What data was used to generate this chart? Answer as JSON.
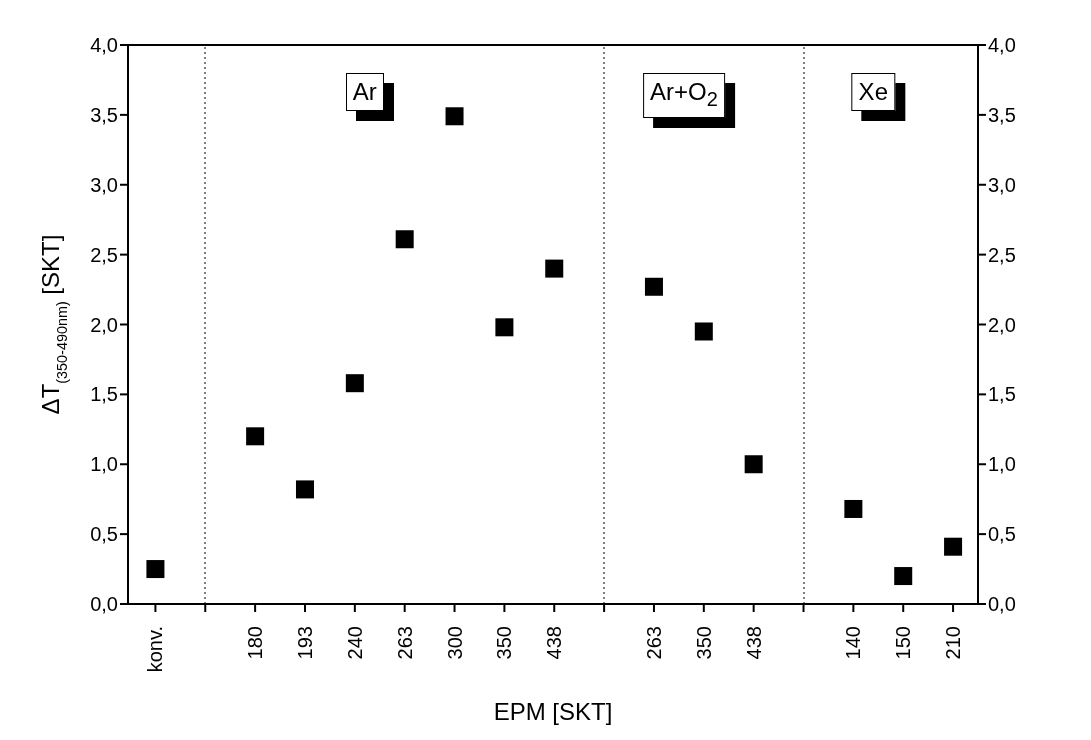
{
  "chart_data": {
    "type": "scatter",
    "xlabel": "EPM [SKT]",
    "ylabel": "ΔT$_{(350-490nm)}$ [SKT]",
    "categories": [
      "konv.",
      null,
      "180",
      "193",
      "240",
      "263",
      "300",
      "350",
      "438",
      null,
      "263",
      "350",
      "438",
      null,
      "140",
      "150",
      "210"
    ],
    "values": [
      0.25,
      null,
      1.2,
      0.82,
      1.58,
      2.61,
      3.49,
      1.98,
      2.4,
      null,
      2.27,
      1.95,
      1.0,
      null,
      0.68,
      0.2,
      0.41
    ],
    "color": "#000000",
    "marker": "square",
    "ylim": [
      0,
      4
    ],
    "yticks": [
      {
        "value": 0,
        "label": "0,0"
      },
      {
        "value": 0.5,
        "label": "0,5"
      },
      {
        "value": 1,
        "label": "1,0"
      },
      {
        "value": 1.5,
        "label": "1,5"
      },
      {
        "value": 2,
        "label": "2,0"
      },
      {
        "value": 2.5,
        "label": "2,5"
      },
      {
        "value": 3,
        "label": "3,0"
      },
      {
        "value": 3.5,
        "label": "3,5"
      },
      {
        "value": 4,
        "label": "4,0"
      }
    ],
    "y2lim": [
      0,
      4
    ],
    "y2ticks": [
      {
        "value": 0,
        "label": "0,0"
      },
      {
        "value": 0.5,
        "label": "0,5"
      },
      {
        "value": 1,
        "label": "1,0"
      },
      {
        "value": 1.5,
        "label": "1,5"
      },
      {
        "value": 2,
        "label": "2,0"
      },
      {
        "value": 2.5,
        "label": "2,5"
      },
      {
        "value": 3,
        "label": "3,0"
      },
      {
        "value": 3.5,
        "label": "3,5"
      },
      {
        "value": 4,
        "label": "4,0"
      }
    ],
    "annotations": [
      "Ar",
      "Ar+O$_{2}$",
      "Xe"
    ],
    "grid": "x",
    "legend": false
  }
}
